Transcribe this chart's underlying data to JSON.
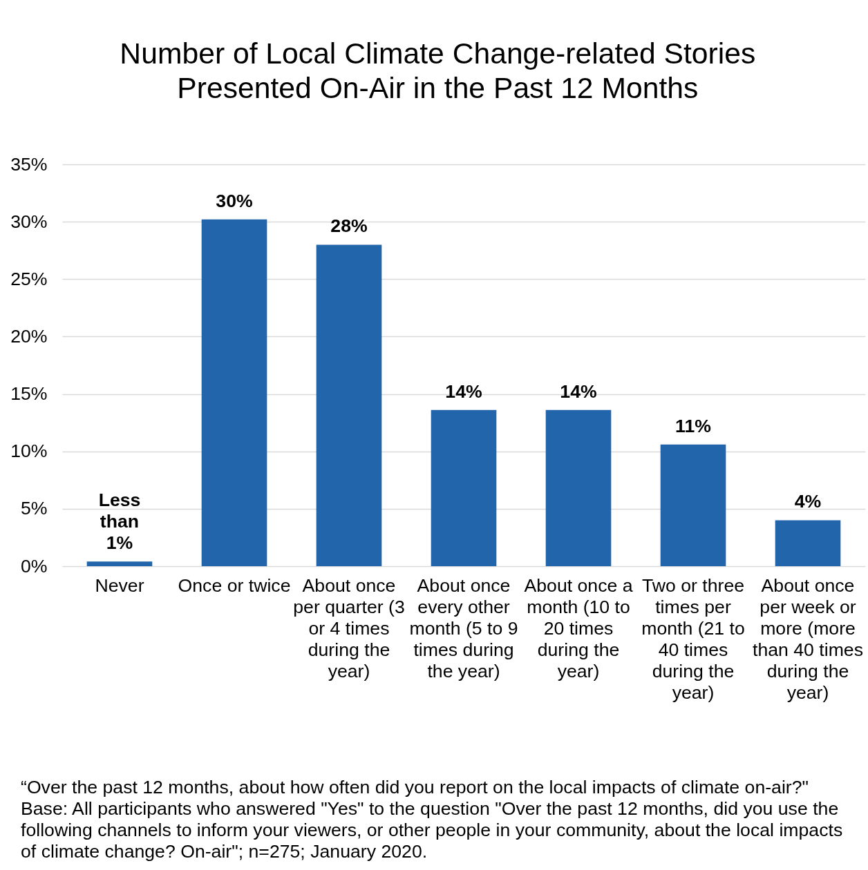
{
  "chart_data": {
    "type": "bar",
    "title": "Number of Local Climate Change-related Stories Presented On-Air in the Past 12 Months",
    "categories": [
      "Never",
      "Once or twice",
      "About once per quarter (3 or 4 times during the year)",
      "About once every other month (5 to 9 times during the year)",
      "About once a month (10 to 20 times during the year)",
      "Two or three times per month (21 to 40 times during the year)",
      "About once per week or more (more than 40 times during the year)"
    ],
    "values": [
      0.4,
      30.2,
      28.0,
      13.6,
      13.6,
      10.6,
      4.0
    ],
    "color": "#2365ab",
    "value_labels": [
      "Less than 1%",
      "30%",
      "28%",
      "14%",
      "14%",
      "11%",
      "4%"
    ],
    "ylim": [
      0,
      35
    ],
    "yticks": [
      {
        "value": 0,
        "label": "0%"
      },
      {
        "value": 5,
        "label": "5%"
      },
      {
        "value": 10,
        "label": "10%"
      },
      {
        "value": 15,
        "label": "15%"
      },
      {
        "value": 20,
        "label": "20%"
      },
      {
        "value": 25,
        "label": "25%"
      },
      {
        "value": 30,
        "label": "30%"
      },
      {
        "value": 35,
        "label": "35%"
      }
    ],
    "grid": "y",
    "annotations": [
      "“Over the past 12 months, about how often did you report on the local impacts of climate on-air?\"",
      "Base: All participants who answered \"Yes\" to the question \"Over the past 12 months, did you use the following channels to inform your viewers, or other people in your community, about the local impacts of climate change? On-air\"; n=275; January 2020."
    ]
  }
}
